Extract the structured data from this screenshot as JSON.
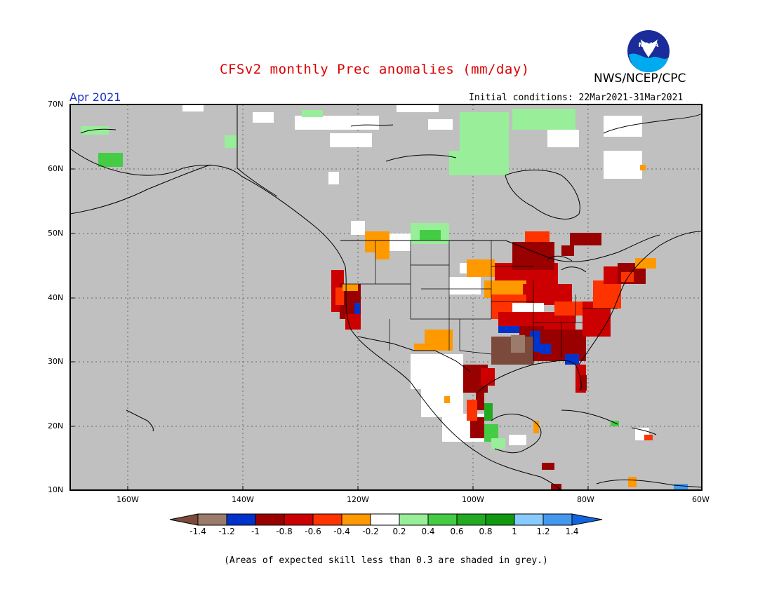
{
  "header": {
    "title": "CFSv2 monthly Prec anomalies (mm/day)",
    "agency": "NWS/NCEP/CPC",
    "logo_text": "NOAA",
    "month": "Apr 2021",
    "initial_conditions": "Initial conditions: 22Mar2021-31Mar2021"
  },
  "axes": {
    "lat_labels": [
      "70N",
      "60N",
      "50N",
      "40N",
      "30N",
      "20N",
      "10N"
    ],
    "lon_labels": [
      "160W",
      "140W",
      "120W",
      "100W",
      "80W",
      "60W"
    ]
  },
  "colorbar": {
    "labels": [
      "-1.4",
      "-1.2",
      "-1",
      "-0.8",
      "-0.6",
      "-0.4",
      "-0.2",
      "0.2",
      "0.4",
      "0.6",
      "0.8",
      "1",
      "1.2",
      "1.4"
    ],
    "colors": [
      "#7b4a3a",
      "#9b7b6b",
      "#0033cc",
      "#990000",
      "#cc0000",
      "#ff3300",
      "#ff9900",
      "#ffffff",
      "#99ee99",
      "#44cc44",
      "#22aa22",
      "#119911",
      "#88ccff",
      "#4499ee",
      "#1166dd"
    ]
  },
  "footnote": "(Areas of expected skill less than 0.3 are shaded in grey.)",
  "colors": {
    "land_grey": "#c0c0c0",
    "title_red": "#dd0000",
    "month_blue": "#1a33cc"
  }
}
